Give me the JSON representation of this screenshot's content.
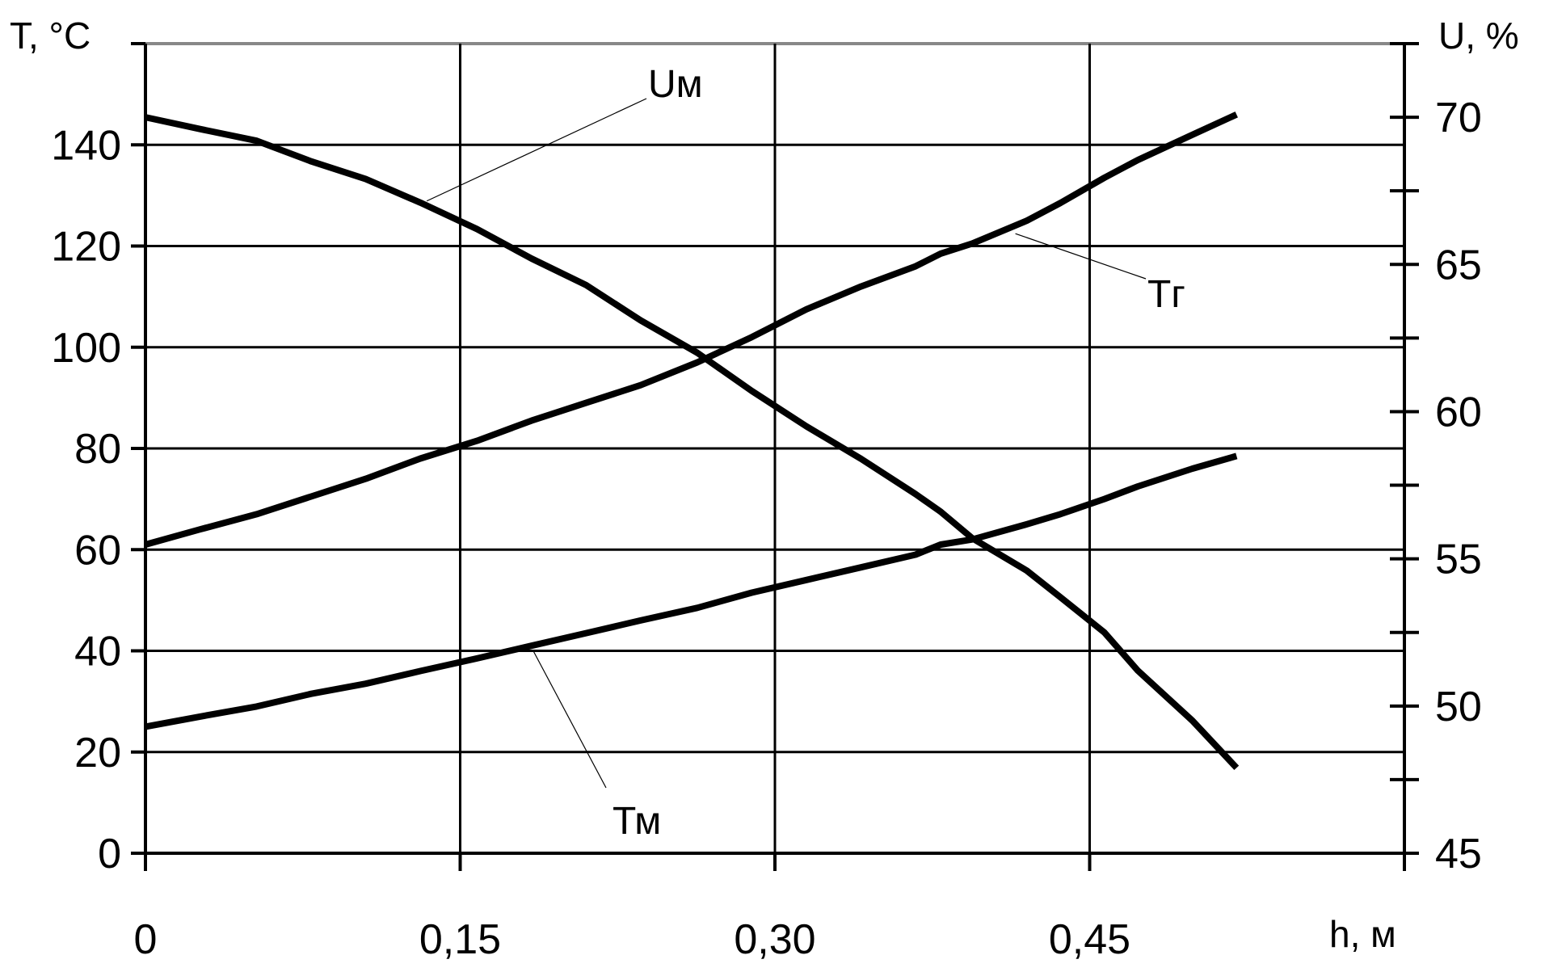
{
  "chart_data": {
    "type": "line",
    "y_left_label": "T, °C",
    "y_right_label": "U, %",
    "x_label": "h, м",
    "x_range": [
      0,
      0.6
    ],
    "y_left_range": [
      0,
      160
    ],
    "y_right_range": [
      45,
      72.5
    ],
    "x_ticks": [
      0,
      0.15,
      0.3,
      0.45
    ],
    "x_tick_labels": [
      "0",
      "0,15",
      "0,30",
      "0,45"
    ],
    "y_left_ticks": [
      0,
      20,
      40,
      60,
      80,
      100,
      120,
      140
    ],
    "y_left_tick_labels": [
      "0",
      "20",
      "40",
      "60",
      "80",
      "100",
      "120",
      "140"
    ],
    "y_right_ticks": [
      45,
      47.5,
      50,
      52.5,
      55,
      57.5,
      60,
      62.5,
      65,
      67.5,
      70
    ],
    "y_right_tick_labels": [
      "45",
      "",
      "50",
      "",
      "55",
      "",
      "60",
      "",
      "65",
      "",
      "70"
    ],
    "grid": true,
    "series": [
      {
        "name": "Тг",
        "axis": "left",
        "x": [
          0,
          0.026,
          0.053,
          0.079,
          0.105,
          0.131,
          0.158,
          0.184,
          0.21,
          0.236,
          0.263,
          0.289,
          0.315,
          0.341,
          0.367,
          0.379,
          0.394,
          0.42,
          0.436,
          0.457,
          0.473,
          0.499,
          0.52
        ],
        "y": [
          61,
          64,
          67,
          70.5,
          74,
          78,
          81.5,
          85.5,
          89,
          92.5,
          97,
          102,
          107.5,
          112,
          116,
          118.5,
          120.5,
          125,
          128.5,
          133.5,
          137,
          142,
          146
        ]
      },
      {
        "name": "Тм",
        "axis": "left",
        "x": [
          0,
          0.026,
          0.053,
          0.079,
          0.105,
          0.131,
          0.158,
          0.184,
          0.21,
          0.236,
          0.263,
          0.289,
          0.315,
          0.341,
          0.367,
          0.379,
          0.394,
          0.42,
          0.436,
          0.457,
          0.473,
          0.499,
          0.52
        ],
        "y": [
          25,
          27,
          29,
          31.5,
          33.5,
          36,
          38.5,
          41,
          43.5,
          46,
          48.5,
          51.5,
          54,
          56.5,
          59,
          61,
          62,
          65,
          67,
          70,
          72.5,
          76,
          78.5
        ]
      },
      {
        "name": "Uм",
        "axis": "right",
        "x": [
          0,
          0.026,
          0.053,
          0.079,
          0.105,
          0.131,
          0.158,
          0.184,
          0.21,
          0.236,
          0.263,
          0.289,
          0.315,
          0.341,
          0.367,
          0.379,
          0.394,
          0.42,
          0.436,
          0.457,
          0.473,
          0.499,
          0.52
        ],
        "y": [
          70,
          69.6,
          69.2,
          68.5,
          67.9,
          67.1,
          66.2,
          65.2,
          64.3,
          63.1,
          62.0,
          60.7,
          59.5,
          58.4,
          57.2,
          56.6,
          55.7,
          54.6,
          53.7,
          52.5,
          51.2,
          49.5,
          47.9
        ]
      }
    ],
    "annotations": [
      "Uм",
      "Тг",
      "Тм"
    ]
  }
}
